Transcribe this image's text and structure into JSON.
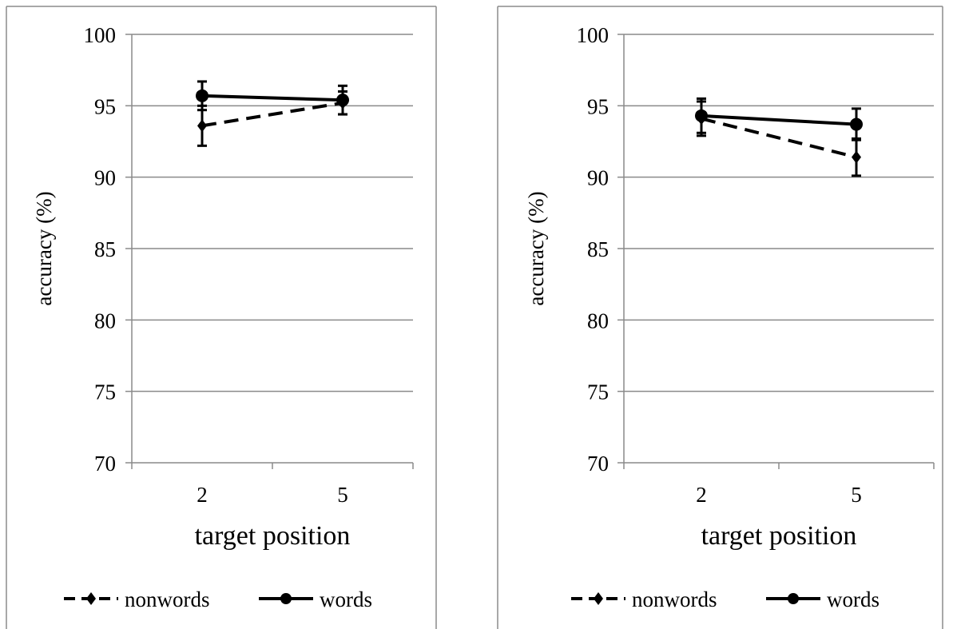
{
  "chart_data": [
    {
      "type": "line",
      "xlabel": "target position",
      "ylabel": "accuracy (%)",
      "categories": [
        "2",
        "5"
      ],
      "ylim": [
        70,
        100
      ],
      "yticks": [
        "70",
        "75",
        "80",
        "85",
        "90",
        "95",
        "100"
      ],
      "grid": true,
      "legend_position": "bottom",
      "series": [
        {
          "name": "nonwords",
          "values": [
            93.6,
            95.2
          ],
          "error": [
            1.4,
            0.8
          ],
          "style": "dashed",
          "marker": "diamond",
          "color": "#000000"
        },
        {
          "name": "words",
          "values": [
            95.7,
            95.4
          ],
          "error": [
            1.0,
            1.0
          ],
          "style": "solid",
          "marker": "circle",
          "color": "#000000"
        }
      ]
    },
    {
      "type": "line",
      "xlabel": "target position",
      "ylabel": "accuracy (%)",
      "categories": [
        "2",
        "5"
      ],
      "ylim": [
        70,
        100
      ],
      "yticks": [
        "70",
        "75",
        "80",
        "85",
        "90",
        "95",
        "100"
      ],
      "grid": true,
      "legend_position": "bottom",
      "series": [
        {
          "name": "nonwords",
          "values": [
            94.1,
            91.4
          ],
          "error": [
            1.2,
            1.3
          ],
          "style": "dashed",
          "marker": "diamond",
          "color": "#000000"
        },
        {
          "name": "words",
          "values": [
            94.3,
            93.7
          ],
          "error": [
            1.2,
            1.1
          ],
          "style": "solid",
          "marker": "circle",
          "color": "#000000"
        }
      ]
    }
  ]
}
